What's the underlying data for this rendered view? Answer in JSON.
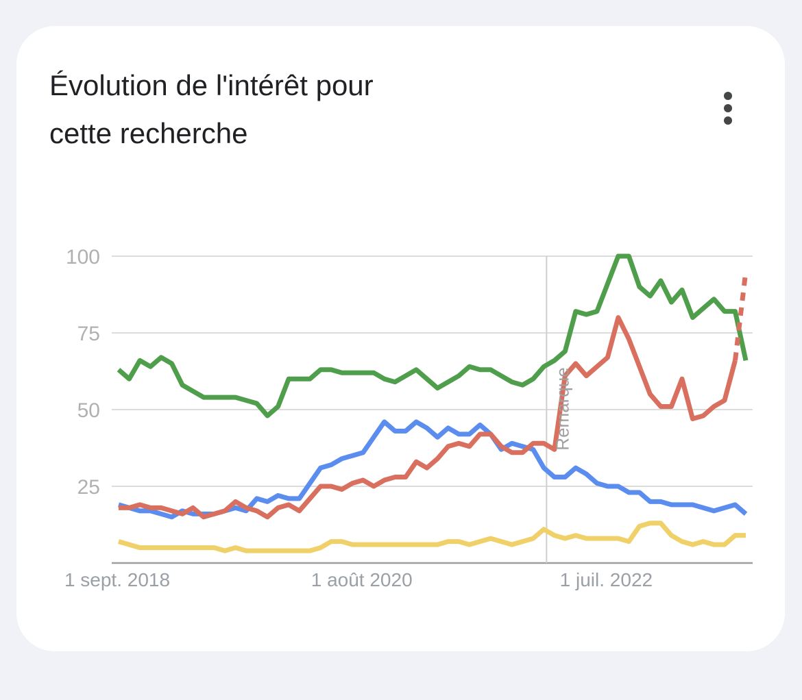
{
  "card": {
    "title_line1": "Évolution de l'intérêt pour",
    "title_line2": "cette recherche",
    "menu_icon": "more-vert-icon"
  },
  "chart_data": {
    "type": "line",
    "title": "Évolution de l'intérêt pour cette recherche",
    "xlabel": "",
    "ylabel": "",
    "ylim": [
      0,
      100
    ],
    "yticks": [
      25,
      50,
      75,
      100
    ],
    "grid": true,
    "x_start": "2018-09-01",
    "x_step": "month",
    "x_tick_labels": [
      {
        "label": "1 sept. 2018",
        "date": "2018-09-01"
      },
      {
        "label": "1 août 2020",
        "date": "2020-08-01"
      },
      {
        "label": "1 juil. 2022",
        "date": "2022-07-01"
      }
    ],
    "annotation": {
      "text": "Remarque",
      "date": "2022-01-01"
    },
    "colors": {
      "blue": "#5b8def",
      "red": "#d9705f",
      "yellow": "#f0d069",
      "green": "#4f9e4b",
      "grid": "#dcdcdc",
      "tick_text": "#b0b0b0",
      "axis_label": "#9aa0a6"
    },
    "series": [
      {
        "color": "#4f9e4b",
        "values": [
          63,
          60,
          66,
          64,
          67,
          65,
          58,
          56,
          54,
          54,
          54,
          54,
          53,
          52,
          48,
          51,
          60,
          60,
          60,
          63,
          63,
          62,
          62,
          62,
          62,
          60,
          59,
          61,
          63,
          60,
          57,
          59,
          61,
          64,
          63,
          63,
          61,
          59,
          58,
          60,
          64,
          66,
          69,
          82,
          81,
          82,
          91,
          100,
          100,
          90,
          87,
          92,
          85,
          89,
          80,
          83,
          86,
          82,
          82,
          66
        ],
        "dashed_tail": false
      },
      {
        "color": "#5b8def",
        "values": [
          19,
          18,
          17,
          17,
          16,
          15,
          17,
          16,
          16,
          16,
          17,
          18,
          17,
          21,
          20,
          22,
          21,
          21,
          26,
          31,
          32,
          34,
          35,
          36,
          41,
          46,
          43,
          43,
          46,
          44,
          41,
          44,
          42,
          42,
          45,
          42,
          37,
          39,
          38,
          37,
          31,
          28,
          28,
          31,
          29,
          26,
          25,
          25,
          23,
          23,
          20,
          20,
          19,
          19,
          19,
          18,
          17,
          18,
          19,
          16
        ],
        "dashed_tail": false
      },
      {
        "color": "#d9705f",
        "values": [
          18,
          18,
          19,
          18,
          18,
          17,
          16,
          18,
          15,
          16,
          17,
          20,
          18,
          17,
          15,
          18,
          19,
          17,
          21,
          25,
          25,
          24,
          26,
          27,
          25,
          27,
          28,
          28,
          33,
          31,
          34,
          38,
          39,
          38,
          42,
          42,
          38,
          36,
          36,
          39,
          39,
          37,
          61,
          65,
          61,
          64,
          67,
          80,
          73,
          64,
          55,
          51,
          51,
          60,
          47,
          48,
          51,
          53,
          66,
          95
        ],
        "dashed_tail": true
      },
      {
        "color": "#f0d069",
        "values": [
          7,
          6,
          5,
          5,
          5,
          5,
          5,
          5,
          5,
          5,
          4,
          5,
          4,
          4,
          4,
          4,
          4,
          4,
          4,
          5,
          7,
          7,
          6,
          6,
          6,
          6,
          6,
          6,
          6,
          6,
          6,
          7,
          7,
          6,
          7,
          8,
          7,
          6,
          7,
          8,
          11,
          9,
          8,
          9,
          8,
          8,
          8,
          8,
          7,
          12,
          13,
          13,
          9,
          7,
          6,
          7,
          6,
          6,
          9,
          9
        ],
        "dashed_tail": false
      }
    ]
  }
}
